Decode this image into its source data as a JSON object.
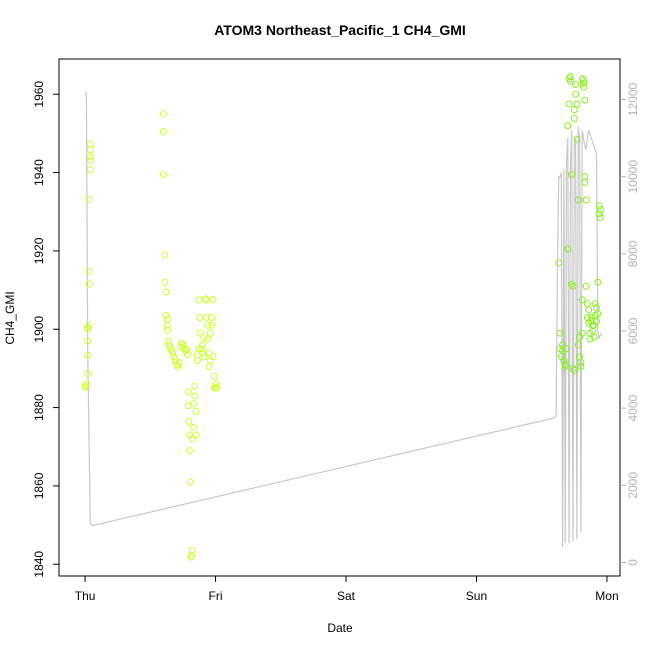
{
  "chart_data": {
    "type": "scatter",
    "title": "ATOM3 Northeast_Pacific_1 CH4_GMI",
    "xlabel": "Date",
    "ylabel": "CH4_GMI",
    "x_ticks": [
      "Thu",
      "Fri",
      "Sat",
      "Sun",
      "Mon"
    ],
    "x_tick_values": [
      0,
      1,
      2,
      3,
      4
    ],
    "x_range": [
      -0.2,
      4.1
    ],
    "y_ticks": [
      1840,
      1860,
      1880,
      1900,
      1920,
      1940,
      1960
    ],
    "ylim": [
      1837,
      1969
    ],
    "y2_ticks": [
      0,
      2000,
      4000,
      6000,
      8000,
      10000,
      12000
    ],
    "y2lim": [
      -350,
      13050
    ],
    "grid": false,
    "colors": {
      "points_early": "#ccff33",
      "points_late": "#88ee22",
      "altitude_line": "#c8c8c8",
      "axis": "#000000",
      "right_axis": "#b4b4b4"
    },
    "series": [
      {
        "color": "#ccff33",
        "points": [
          [
            0.0,
            1885.2
          ],
          [
            0.0,
            1885.6
          ],
          [
            0.01,
            1886.0
          ],
          [
            0.02,
            1888.7
          ],
          [
            0.02,
            1893.3
          ],
          [
            0.02,
            1897.0
          ],
          [
            0.02,
            1900.0
          ],
          [
            0.02,
            1900.5
          ],
          [
            0.03,
            1901.0
          ],
          [
            0.03,
            1911.5
          ],
          [
            0.03,
            1914.8
          ],
          [
            0.03,
            1933.2
          ],
          [
            0.04,
            1940.8
          ],
          [
            0.04,
            1943.2
          ],
          [
            0.04,
            1944.0
          ],
          [
            0.04,
            1945.8
          ],
          [
            0.04,
            1947.3
          ],
          [
            0.6,
            1955.0
          ],
          [
            0.6,
            1950.5
          ],
          [
            0.6,
            1939.5
          ],
          [
            0.61,
            1919.0
          ],
          [
            0.61,
            1912.0
          ],
          [
            0.62,
            1909.5
          ],
          [
            0.62,
            1903.5
          ],
          [
            0.63,
            1902.5
          ],
          [
            0.63,
            1901.0
          ],
          [
            0.63,
            1899.8
          ],
          [
            0.64,
            1897.0
          ],
          [
            0.64,
            1896.0
          ],
          [
            0.65,
            1895.5
          ],
          [
            0.66,
            1894.8
          ],
          [
            0.67,
            1894.0
          ],
          [
            0.68,
            1893.0
          ],
          [
            0.69,
            1892.0
          ],
          [
            0.7,
            1891.0
          ],
          [
            0.71,
            1890.5
          ],
          [
            0.72,
            1891.5
          ],
          [
            0.73,
            1895.5
          ],
          [
            0.74,
            1896.5
          ],
          [
            0.75,
            1896.0
          ],
          [
            0.76,
            1895.0
          ],
          [
            0.77,
            1894.5
          ],
          [
            0.78,
            1894.8
          ],
          [
            0.785,
            1893.5
          ],
          [
            0.79,
            1884.0
          ],
          [
            0.79,
            1880.5
          ],
          [
            0.795,
            1876.5
          ],
          [
            0.8,
            1873.0
          ],
          [
            0.8,
            1869.0
          ],
          [
            0.805,
            1861.0
          ],
          [
            0.81,
            1841.8
          ],
          [
            0.815,
            1842.2
          ],
          [
            0.82,
            1843.5
          ],
          [
            0.82,
            1872.0
          ],
          [
            0.83,
            1875.0
          ],
          [
            0.83,
            1881.0
          ],
          [
            0.84,
            1883.0
          ],
          [
            0.84,
            1885.5
          ],
          [
            0.85,
            1879.0
          ],
          [
            0.85,
            1873.0
          ],
          [
            0.86,
            1892.0
          ],
          [
            0.86,
            1893.5
          ],
          [
            0.87,
            1895.0
          ],
          [
            0.87,
            1907.5
          ],
          [
            0.88,
            1903.0
          ],
          [
            0.88,
            1899.0
          ],
          [
            0.89,
            1895.0
          ],
          [
            0.9,
            1894.0
          ],
          [
            0.9,
            1896.0
          ],
          [
            0.91,
            1893.0
          ],
          [
            0.91,
            1898.0
          ],
          [
            0.92,
            1907.8
          ],
          [
            0.93,
            1907.5
          ],
          [
            0.93,
            1903.0
          ],
          [
            0.94,
            1901.0
          ],
          [
            0.94,
            1897.5
          ],
          [
            0.95,
            1894.0
          ],
          [
            0.95,
            1890.5
          ],
          [
            0.96,
            1892.0
          ],
          [
            0.96,
            1899.0
          ],
          [
            0.97,
            1901.0
          ],
          [
            0.97,
            1903.0
          ],
          [
            0.98,
            1907.6
          ],
          [
            0.98,
            1893.0
          ],
          [
            0.99,
            1888.0
          ],
          [
            0.99,
            1885.0
          ],
          [
            1.0,
            1886.0
          ],
          [
            1.0,
            1885.0
          ],
          [
            1.01,
            1885.2
          ]
        ]
      },
      {
        "color": "#88ee22",
        "points": [
          [
            3.63,
            1917.0
          ],
          [
            3.64,
            1899.0
          ],
          [
            3.64,
            1895.0
          ],
          [
            3.65,
            1893.0
          ],
          [
            3.66,
            1894.5
          ],
          [
            3.66,
            1896.0
          ],
          [
            3.67,
            1892.0
          ],
          [
            3.68,
            1891.0
          ],
          [
            3.68,
            1890.5
          ],
          [
            3.69,
            1895.0
          ],
          [
            3.7,
            1920.5
          ],
          [
            3.7,
            1952.0
          ],
          [
            3.71,
            1957.5
          ],
          [
            3.71,
            1964.0
          ],
          [
            3.72,
            1964.5
          ],
          [
            3.72,
            1963.3
          ],
          [
            3.73,
            1939.5
          ],
          [
            3.73,
            1911.5
          ],
          [
            3.74,
            1911.0
          ],
          [
            3.74,
            1890.0
          ],
          [
            3.75,
            1889.5
          ],
          [
            3.75,
            1956.0
          ],
          [
            3.75,
            1953.8
          ],
          [
            3.76,
            1962.5
          ],
          [
            3.76,
            1960.0
          ],
          [
            3.77,
            1957.5
          ],
          [
            3.77,
            1948.5
          ],
          [
            3.78,
            1933.0
          ],
          [
            3.78,
            1896.0
          ],
          [
            3.79,
            1898.0
          ],
          [
            3.79,
            1893.0
          ],
          [
            3.8,
            1890.5
          ],
          [
            3.8,
            1891.5
          ],
          [
            3.81,
            1899.0
          ],
          [
            3.81,
            1907.5
          ],
          [
            3.81,
            1964.0
          ],
          [
            3.82,
            1963.5
          ],
          [
            3.82,
            1962.8
          ],
          [
            3.82,
            1961.8
          ],
          [
            3.83,
            1958.5
          ],
          [
            3.83,
            1939.0
          ],
          [
            3.83,
            1937.5
          ],
          [
            3.84,
            1933.0
          ],
          [
            3.84,
            1911.0
          ],
          [
            3.85,
            1906.5
          ],
          [
            3.85,
            1903.0
          ],
          [
            3.86,
            1905.0
          ],
          [
            3.86,
            1901.5
          ],
          [
            3.87,
            1899.0
          ],
          [
            3.87,
            1897.5
          ],
          [
            3.88,
            1903.0
          ],
          [
            3.88,
            1902.0
          ],
          [
            3.89,
            1901.0
          ],
          [
            3.89,
            1899.5
          ],
          [
            3.9,
            1898.0
          ],
          [
            3.9,
            1901.0
          ],
          [
            3.91,
            1906.5
          ],
          [
            3.91,
            1903.5
          ],
          [
            3.92,
            1902.0
          ],
          [
            3.92,
            1905.5
          ],
          [
            3.93,
            1904.0
          ],
          [
            3.93,
            1912.0
          ],
          [
            3.94,
            1929.5
          ],
          [
            3.94,
            1931.5
          ],
          [
            3.95,
            1930.5
          ],
          [
            3.95,
            1928.5
          ]
        ]
      }
    ],
    "altitude_line": {
      "axis": "right",
      "points": [
        [
          0.0,
          12200
        ],
        [
          0.01,
          12150
        ],
        [
          0.02,
          5500
        ],
        [
          0.04,
          1000
        ],
        [
          0.06,
          960
        ],
        [
          3.6,
          3750
        ],
        [
          3.61,
          3800
        ],
        [
          3.62,
          7500
        ],
        [
          3.63,
          10000
        ],
        [
          3.64,
          10000
        ],
        [
          3.65,
          10100
        ],
        [
          3.66,
          400
        ],
        [
          3.67,
          10200
        ],
        [
          3.68,
          500
        ],
        [
          3.69,
          10400
        ],
        [
          3.7,
          11000
        ],
        [
          3.71,
          500
        ],
        [
          3.72,
          10300
        ],
        [
          3.73,
          11200
        ],
        [
          3.74,
          550
        ],
        [
          3.75,
          10800
        ],
        [
          3.76,
          11000
        ],
        [
          3.77,
          600
        ],
        [
          3.78,
          11300
        ],
        [
          3.79,
          11000
        ],
        [
          3.8,
          800
        ],
        [
          3.81,
          11200
        ],
        [
          3.82,
          11000
        ],
        [
          3.83,
          10800
        ],
        [
          3.84,
          10700
        ],
        [
          3.85,
          11000
        ],
        [
          3.86,
          11200
        ],
        [
          3.87,
          11100
        ],
        [
          3.88,
          11000
        ],
        [
          3.89,
          10900
        ],
        [
          3.9,
          10800
        ],
        [
          3.91,
          10700
        ],
        [
          3.92,
          10600
        ],
        [
          3.93,
          6000
        ],
        [
          3.94,
          5800
        ],
        [
          3.95,
          5900
        ],
        [
          3.96,
          5950
        ]
      ]
    }
  }
}
